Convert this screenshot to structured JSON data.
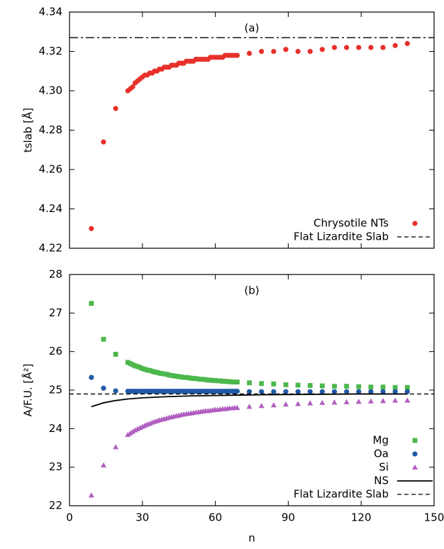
{
  "chart_data": [
    {
      "type": "scatter",
      "annotation": "(a)",
      "y_label": "tslab [Å]",
      "xlim": [
        0,
        150
      ],
      "xticks": [
        0,
        30,
        60,
        90,
        120,
        150
      ],
      "ylim": [
        4.22,
        4.34
      ],
      "yticks": [
        4.22,
        4.24,
        4.26,
        4.28,
        {
          "value": 4.3,
          "label": "4.30"
        },
        4.32,
        4.34
      ],
      "legend": "bottom-right",
      "series": [
        {
          "name": "Chrysotile NTs",
          "color": "#e8302a",
          "marker": "circle",
          "x": [
            9,
            14,
            19,
            24,
            25,
            26,
            27,
            28,
            29,
            30,
            31,
            32,
            33,
            34,
            35,
            36,
            37,
            38,
            39,
            40,
            41,
            42,
            43,
            44,
            45,
            46,
            47,
            48,
            49,
            50,
            51,
            52,
            53,
            54,
            55,
            56,
            57,
            58,
            59,
            60,
            61,
            62,
            63,
            64,
            65,
            66,
            67,
            68,
            69,
            74,
            79,
            84,
            89,
            94,
            99,
            104,
            109,
            114,
            119,
            124,
            129,
            134,
            139
          ],
          "values": [
            4.23,
            4.274,
            4.291,
            4.3,
            4.301,
            4.302,
            4.304,
            4.305,
            4.306,
            4.307,
            4.308,
            4.308,
            4.309,
            4.309,
            4.31,
            4.31,
            4.311,
            4.311,
            4.312,
            4.312,
            4.312,
            4.313,
            4.313,
            4.313,
            4.314,
            4.314,
            4.314,
            4.315,
            4.315,
            4.315,
            4.315,
            4.316,
            4.316,
            4.316,
            4.316,
            4.316,
            4.316,
            4.317,
            4.317,
            4.317,
            4.317,
            4.317,
            4.317,
            4.318,
            4.318,
            4.318,
            4.318,
            4.318,
            4.318,
            4.319,
            4.32,
            4.32,
            4.321,
            4.32,
            4.32,
            4.321,
            4.322,
            4.322,
            4.322,
            4.322,
            4.322,
            4.323,
            4.324
          ]
        },
        {
          "name": "Flat Lizardite Slab",
          "color": "#000000",
          "marker": "hline",
          "dash": "dashdot",
          "value": 4.327
        }
      ]
    },
    {
      "type": "scatter",
      "annotation": "(b)",
      "y_label": "A/F.U. [Å²]",
      "x_label": "n",
      "xlim": [
        0,
        150
      ],
      "xticks": [
        0,
        30,
        60,
        90,
        120,
        150
      ],
      "ylim": [
        22,
        28
      ],
      "yticks": [
        22,
        23,
        24,
        25,
        26,
        27,
        28
      ],
      "legend": "bottom-right",
      "series": [
        {
          "name": "Mg",
          "color": "#4cb84c",
          "marker": "square",
          "x": [
            9,
            14,
            19,
            24,
            25,
            26,
            27,
            28,
            29,
            30,
            31,
            32,
            33,
            34,
            35,
            36,
            37,
            38,
            39,
            40,
            41,
            42,
            43,
            44,
            45,
            46,
            47,
            48,
            49,
            50,
            51,
            52,
            53,
            54,
            55,
            56,
            57,
            58,
            59,
            60,
            61,
            62,
            63,
            64,
            65,
            66,
            67,
            68,
            69,
            74,
            79,
            84,
            89,
            94,
            99,
            104,
            109,
            114,
            119,
            124,
            129,
            134,
            139
          ],
          "values": [
            27.25,
            26.32,
            25.93,
            25.72,
            25.69,
            25.66,
            25.63,
            25.61,
            25.59,
            25.56,
            25.54,
            25.52,
            25.51,
            25.49,
            25.47,
            25.46,
            25.44,
            25.43,
            25.42,
            25.41,
            25.39,
            25.38,
            25.37,
            25.36,
            25.35,
            25.34,
            25.33,
            25.33,
            25.32,
            25.31,
            25.3,
            25.3,
            25.29,
            25.28,
            25.28,
            25.27,
            25.26,
            25.26,
            25.25,
            25.25,
            25.24,
            25.24,
            25.23,
            25.23,
            25.22,
            25.22,
            25.21,
            25.21,
            25.21,
            25.19,
            25.17,
            25.16,
            25.14,
            25.13,
            25.12,
            25.11,
            25.1,
            25.1,
            25.09,
            25.08,
            25.08,
            25.07,
            25.07
          ]
        },
        {
          "name": "Oa",
          "color": "#1f5aa6",
          "marker": "circle",
          "x": [
            9,
            14,
            19,
            24,
            25,
            26,
            27,
            28,
            29,
            30,
            31,
            32,
            33,
            34,
            35,
            36,
            37,
            38,
            39,
            40,
            41,
            42,
            43,
            44,
            45,
            46,
            47,
            48,
            49,
            50,
            51,
            52,
            53,
            54,
            55,
            56,
            57,
            58,
            59,
            60,
            61,
            62,
            63,
            64,
            65,
            66,
            67,
            68,
            69,
            74,
            79,
            84,
            89,
            94,
            99,
            104,
            109,
            114,
            119,
            124,
            129,
            134,
            139
          ],
          "values": [
            25.33,
            25.05,
            24.98,
            24.97,
            24.97,
            24.97,
            24.97,
            24.97,
            24.97,
            24.97,
            24.97,
            24.97,
            24.97,
            24.97,
            24.97,
            24.97,
            24.97,
            24.97,
            24.97,
            24.97,
            24.97,
            24.97,
            24.97,
            24.97,
            24.97,
            24.97,
            24.97,
            24.97,
            24.97,
            24.97,
            24.97,
            24.97,
            24.97,
            24.97,
            24.97,
            24.97,
            24.97,
            24.97,
            24.97,
            24.97,
            24.97,
            24.97,
            24.97,
            24.97,
            24.97,
            24.97,
            24.97,
            24.97,
            24.97,
            24.96,
            24.96,
            24.96,
            24.96,
            24.96,
            24.96,
            24.96,
            24.96,
            24.96,
            24.96,
            24.96,
            24.96,
            24.96,
            24.96
          ]
        },
        {
          "name": "Si",
          "color": "#b05fc0",
          "marker": "triangle",
          "x": [
            9,
            14,
            19,
            24,
            25,
            26,
            27,
            28,
            29,
            30,
            31,
            32,
            33,
            34,
            35,
            36,
            37,
            38,
            39,
            40,
            41,
            42,
            43,
            44,
            45,
            46,
            47,
            48,
            49,
            50,
            51,
            52,
            53,
            54,
            55,
            56,
            57,
            58,
            59,
            60,
            61,
            62,
            63,
            64,
            65,
            66,
            67,
            68,
            69,
            74,
            79,
            84,
            89,
            94,
            99,
            104,
            109,
            114,
            119,
            124,
            129,
            134,
            139
          ],
          "values": [
            22.27,
            23.05,
            23.52,
            23.84,
            23.88,
            23.92,
            23.96,
            23.99,
            24.02,
            24.05,
            24.08,
            24.11,
            24.13,
            24.16,
            24.18,
            24.2,
            24.22,
            24.24,
            24.25,
            24.27,
            24.29,
            24.3,
            24.32,
            24.33,
            24.34,
            24.36,
            24.37,
            24.38,
            24.39,
            24.4,
            24.41,
            24.42,
            24.43,
            24.44,
            24.45,
            24.46,
            24.46,
            24.47,
            24.48,
            24.49,
            24.49,
            24.5,
            24.51,
            24.51,
            24.52,
            24.53,
            24.53,
            24.54,
            24.54,
            24.57,
            24.59,
            24.61,
            24.63,
            24.64,
            24.66,
            24.67,
            24.68,
            24.69,
            24.7,
            24.71,
            24.72,
            24.73,
            24.73
          ]
        },
        {
          "name": "NS",
          "color": "#000000",
          "marker": "line",
          "x": [
            9,
            14,
            19,
            24,
            30,
            40,
            50,
            60,
            70,
            80,
            100,
            120,
            139
          ],
          "values": [
            24.57,
            24.67,
            24.73,
            24.77,
            24.8,
            24.83,
            24.85,
            24.86,
            24.87,
            24.88,
            24.89,
            24.9,
            24.9
          ]
        },
        {
          "name": "Flat Lizardite Slab",
          "color": "#000000",
          "marker": "hline",
          "dash": "dashed",
          "value": 24.9
        }
      ]
    }
  ]
}
